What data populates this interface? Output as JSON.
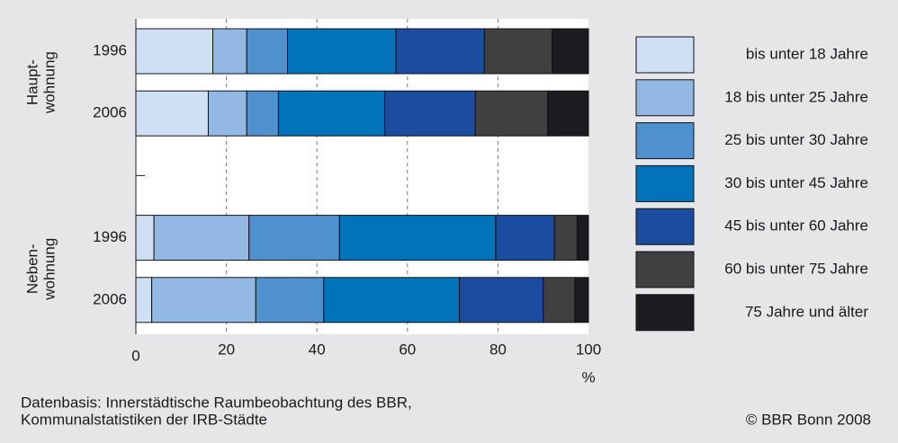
{
  "chart_data": {
    "type": "stacked-barh",
    "categories": [
      "1996",
      "2006",
      null,
      "1996",
      "2006"
    ],
    "groups": [
      {
        "lines": [
          "Haupt-",
          "wohnung"
        ],
        "rows": [
          0,
          1
        ]
      },
      {
        "lines": [
          "Neben-",
          "wohnung"
        ],
        "rows": [
          3,
          4
        ]
      }
    ],
    "series": [
      {
        "name": "bis unter 18 Jahre",
        "color": "#cfe0f5",
        "values": [
          17,
          16,
          null,
          4,
          3.5
        ]
      },
      {
        "name": "18 bis unter 25 Jahre",
        "color": "#93b8e4",
        "values": [
          7.5,
          8.5,
          null,
          21,
          23
        ]
      },
      {
        "name": "25 bis unter 30 Jahre",
        "color": "#4f91cf",
        "values": [
          9,
          7,
          null,
          20,
          15
        ]
      },
      {
        "name": "30 bis unter 45 Jahre",
        "color": "#0073bb",
        "values": [
          24,
          23.5,
          null,
          34.5,
          30
        ]
      },
      {
        "name": "45 bis unter 60 Jahre",
        "color": "#1a4d9f",
        "values": [
          19.5,
          20,
          null,
          13,
          18.5
        ]
      },
      {
        "name": "60 bis unter 75 Jahre",
        "color": "#404042",
        "values": [
          15,
          16,
          null,
          5,
          7
        ]
      },
      {
        "name": "75 Jahre und älter",
        "color": "#1b1b20",
        "values": [
          8,
          9,
          null,
          2.5,
          3
        ]
      }
    ],
    "xlim": [
      0,
      100
    ],
    "xticks": [
      0,
      20,
      40,
      60,
      80,
      100
    ],
    "xlabel": "%",
    "grid": true,
    "source": [
      "Datenbasis: Innerstädtische Raumbeobachtung des BBR,",
      "Kommunalstatistiken der IRB-Städte"
    ],
    "copyright": "© BBR Bonn 2008"
  }
}
